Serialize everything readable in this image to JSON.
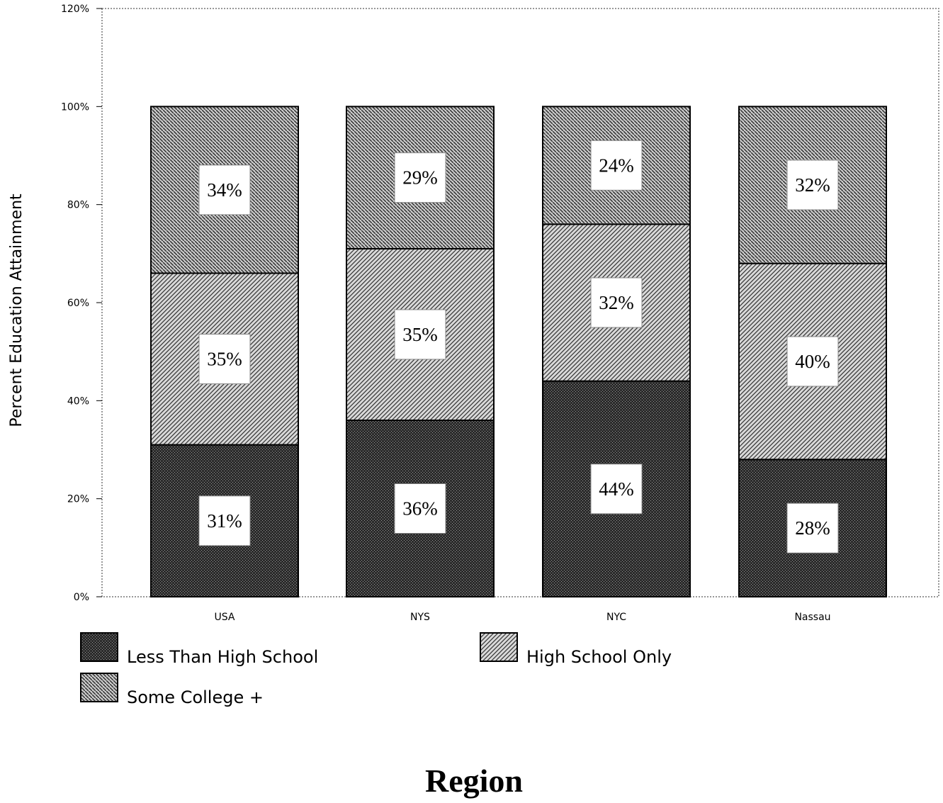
{
  "chart_data": {
    "type": "bar",
    "stacked": true,
    "title": "",
    "xlabel": "Region",
    "ylabel": "Percent Education Attainment",
    "ylim": [
      0,
      120
    ],
    "yticks": [
      "0%",
      "20%",
      "40%",
      "60%",
      "80%",
      "100%",
      "120%"
    ],
    "categories": [
      "USA",
      "NYS",
      "NYC",
      "Nassau"
    ],
    "series": [
      {
        "name": "Less Than High School",
        "values": [
          31,
          36,
          44,
          28
        ],
        "labels": [
          "31%",
          "36%",
          "44%",
          "28%"
        ],
        "pattern": "crosshatch-dark"
      },
      {
        "name": "High School Only",
        "values": [
          35,
          35,
          32,
          40
        ],
        "labels": [
          "35%",
          "35%",
          "32%",
          "40%"
        ],
        "pattern": "diagonal-forward"
      },
      {
        "name": "Some College +",
        "values": [
          34,
          29,
          24,
          32
        ],
        "labels": [
          "34%",
          "29%",
          "24%",
          "32%"
        ],
        "pattern": "diagonal-back"
      }
    ],
    "grid": false,
    "legend_position": "bottom-left"
  }
}
